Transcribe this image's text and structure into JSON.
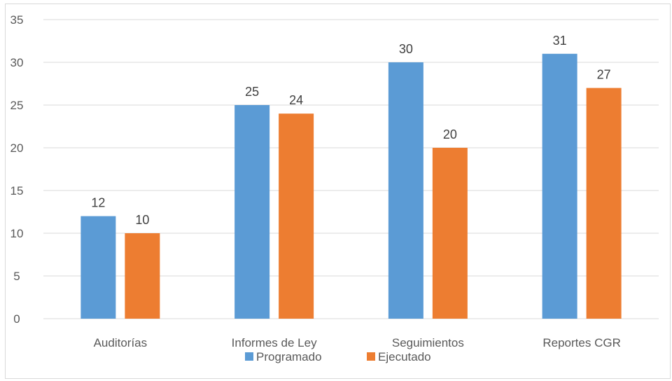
{
  "chart_data": {
    "type": "bar",
    "title": "",
    "xlabel": "",
    "ylabel": "",
    "categories": [
      "Auditorías",
      "Informes de Ley",
      "Seguimientos",
      "Reportes CGR"
    ],
    "series": [
      {
        "name": "Programado",
        "values": [
          12,
          25,
          30,
          31
        ],
        "color": "#5b9bd5"
      },
      {
        "name": "Ejecutado",
        "values": [
          10,
          24,
          20,
          27
        ],
        "color": "#ed7d31"
      }
    ],
    "ylim": [
      0,
      35
    ],
    "yticks": [
      0,
      5,
      10,
      15,
      20,
      25,
      30,
      35
    ],
    "grid": true,
    "legend": "bottom",
    "data_labels": true
  }
}
